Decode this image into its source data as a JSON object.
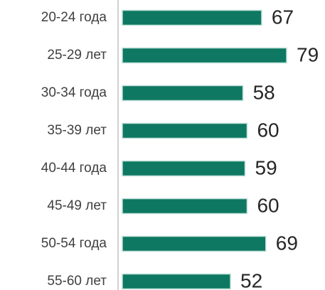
{
  "chart_data": {
    "type": "bar",
    "orientation": "horizontal",
    "categories": [
      "20-24 года",
      "25-29 лет",
      "30-34 года",
      "35-39 лет",
      "40-44 года",
      "45-49 лет",
      "50-54 года",
      "55-60 лет"
    ],
    "values": [
      67,
      79,
      58,
      60,
      59,
      60,
      69,
      52
    ],
    "color": "#0e7862"
  }
}
